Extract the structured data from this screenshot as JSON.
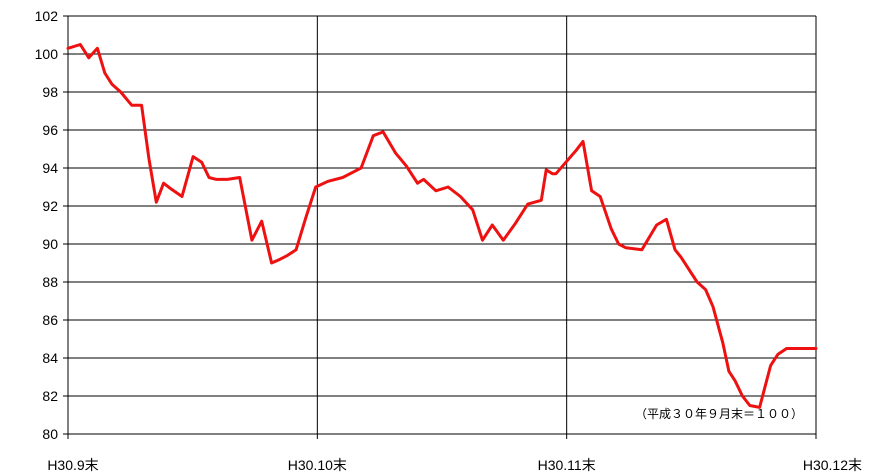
{
  "chart_data": {
    "type": "line",
    "title": "",
    "xlabel": "",
    "ylabel": "",
    "ylim": [
      80,
      102
    ],
    "yticks": [
      "80",
      "82",
      "84",
      "86",
      "88",
      "90",
      "92",
      "94",
      "96",
      "98",
      "100",
      "102"
    ],
    "xticks": [
      "H30.9末",
      "H30.10末",
      "H30.11末",
      "H30.12末"
    ],
    "annotation": "（平成３０年９月末＝１００）",
    "grid": true,
    "line_color": "#ee1111",
    "x_max": 61,
    "series": [
      {
        "x": [
          0,
          1,
          1.7,
          2.4,
          3,
          3.6,
          4.3,
          5.2,
          6,
          6.6,
          7.2,
          7.8,
          8.4,
          9.3,
          10.2,
          10.9,
          11.5,
          12.1,
          13,
          14,
          15,
          15.8,
          16.6,
          17.3,
          17.9,
          18.6,
          19.4,
          20.2,
          21.2,
          22.4,
          23.3,
          23.9,
          24.9,
          25.7,
          26.7,
          27.6,
          28.5,
          29,
          30,
          31,
          32,
          33,
          33.8,
          34.6,
          35.5,
          36.5,
          37.5,
          38.6,
          39,
          39.5,
          39.8,
          40.6,
          41.4,
          42,
          42.7,
          43.4,
          44.3,
          44.9,
          45.5,
          46.8,
          48,
          48.8,
          49.5,
          50,
          51.3,
          52,
          52.6,
          53.4,
          53.9,
          54.4,
          55,
          55.6,
          56.4,
          57.3,
          57.9,
          58.6,
          59.3,
          60,
          61
        ],
        "values": [
          100.3,
          100.5,
          99.8,
          100.3,
          99.0,
          98.4,
          98.0,
          97.3,
          97.3,
          94.5,
          92.2,
          93.2,
          92.9,
          92.5,
          94.6,
          94.3,
          93.5,
          93.4,
          93.4,
          93.5,
          90.2,
          91.2,
          89.0,
          89.2,
          89.4,
          89.7,
          91.4,
          93.0,
          93.3,
          93.5,
          93.8,
          94.0,
          95.7,
          95.9,
          94.8,
          94.1,
          93.2,
          93.4,
          92.8,
          93.0,
          92.5,
          91.8,
          90.2,
          91.0,
          90.2,
          91.1,
          92.1,
          92.3,
          93.9,
          93.7,
          93.7,
          94.3,
          94.9,
          95.4,
          92.8,
          92.5,
          90.8,
          90.0,
          89.8,
          89.7,
          91.0,
          91.3,
          89.7,
          89.3,
          88.0,
          87.6,
          86.7,
          84.8,
          83.3,
          82.8,
          82.0,
          81.5,
          81.4,
          83.6,
          84.2,
          84.5,
          84.5,
          84.5,
          84.5
        ]
      }
    ]
  }
}
